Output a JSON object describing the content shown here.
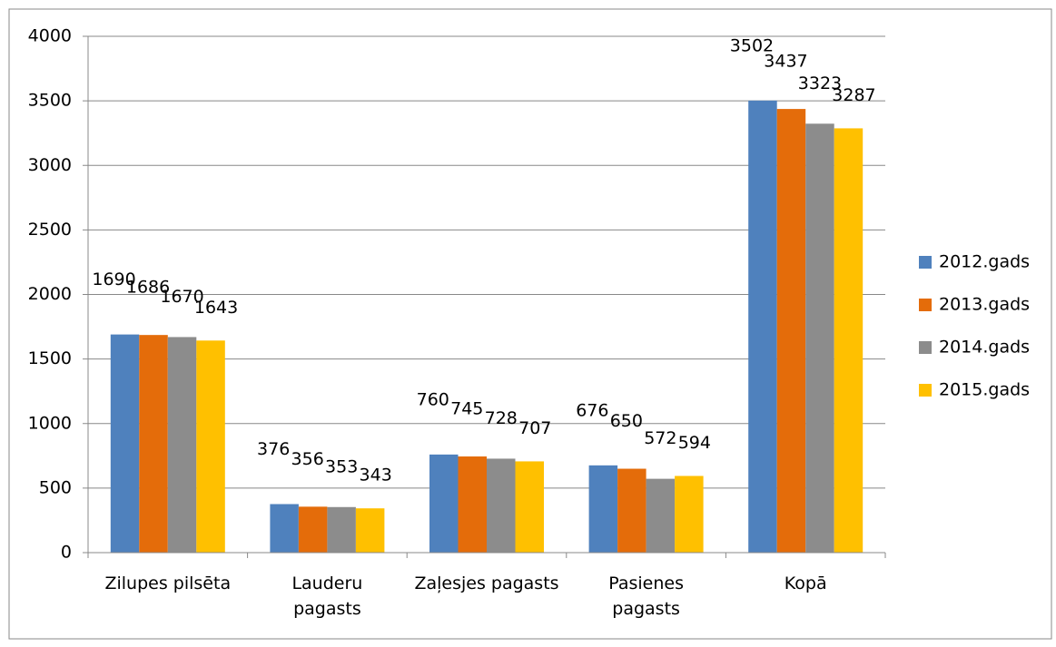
{
  "chart_data": {
    "type": "bar",
    "categories": [
      "Zilupes pilsēta",
      "Lauderu pagasts",
      "Zaļesjes pagasts",
      "Pasienes pagasts",
      "Kopā"
    ],
    "series": [
      {
        "name": "2012.gads",
        "color": "#4f81bd",
        "values": [
          1690,
          376,
          760,
          676,
          3502
        ]
      },
      {
        "name": "2013.gads",
        "color": "#e46c0a",
        "values": [
          1686,
          356,
          745,
          650,
          3437
        ]
      },
      {
        "name": "2014.gads",
        "color": "#8c8c8c",
        "values": [
          1670,
          353,
          728,
          572,
          3323
        ]
      },
      {
        "name": "2015.gads",
        "color": "#ffc000",
        "values": [
          1643,
          343,
          707,
          594,
          3287
        ]
      }
    ],
    "ylim": [
      0,
      4000
    ],
    "yticks": [
      0,
      500,
      1000,
      1500,
      2000,
      2500,
      3000,
      3500,
      4000
    ],
    "grid": true,
    "legend": "right"
  }
}
